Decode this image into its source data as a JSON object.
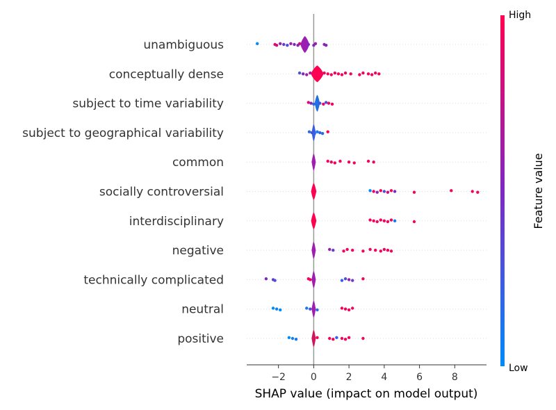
{
  "chart_data": {
    "type": "scatter",
    "subtype": "shap-violin-summary",
    "title": "",
    "xlabel": "SHAP value (impact on model output)",
    "ylabel": "",
    "xlim": [
      -3.8,
      9.8
    ],
    "xticks": [
      -2,
      0,
      2,
      4,
      6,
      8
    ],
    "xtick_labels": [
      "−2",
      "0",
      "2",
      "4",
      "6",
      "8"
    ],
    "grid": false,
    "colorbar": {
      "title": "Feature value",
      "high_label": "High",
      "low_label": "Low",
      "low_color": "#008bfb",
      "mid_color": "#7f28c0",
      "high_color": "#ff0051"
    },
    "features": [
      {
        "name": "unambiguous",
        "violin": {
          "center": -0.5,
          "half_width": 0.25,
          "color": "#9c1fb2"
        },
        "points": [
          {
            "x": -3.2,
            "v": 0.0
          },
          {
            "x": -2.2,
            "v": 0.9
          },
          {
            "x": -2.1,
            "v": 0.8
          },
          {
            "x": -1.9,
            "v": 0.6
          },
          {
            "x": -1.7,
            "v": 0.4
          },
          {
            "x": -1.5,
            "v": 0.3
          },
          {
            "x": -1.3,
            "v": 0.6
          },
          {
            "x": -1.1,
            "v": 0.5
          },
          {
            "x": -0.9,
            "v": 0.5
          },
          {
            "x": -0.8,
            "v": 0.8
          },
          {
            "x": -0.3,
            "v": 0.5
          },
          {
            "x": 0.0,
            "v": 0.5
          },
          {
            "x": 0.1,
            "v": 0.6
          },
          {
            "x": 0.6,
            "v": 0.55
          },
          {
            "x": 0.7,
            "v": 0.5
          }
        ]
      },
      {
        "name": "conceptually dense",
        "violin": {
          "center": 0.2,
          "half_width": 0.35,
          "color": "#ff0051"
        },
        "points": [
          {
            "x": -0.8,
            "v": 0.3
          },
          {
            "x": -0.6,
            "v": 0.5
          },
          {
            "x": -0.4,
            "v": 0.6
          },
          {
            "x": -0.2,
            "v": 0.7
          },
          {
            "x": 0.2,
            "v": 0.95
          },
          {
            "x": 0.4,
            "v": 0.95
          },
          {
            "x": 0.6,
            "v": 0.95
          },
          {
            "x": 0.8,
            "v": 0.95
          },
          {
            "x": 1.0,
            "v": 0.95
          },
          {
            "x": 1.2,
            "v": 0.95
          },
          {
            "x": 1.4,
            "v": 0.95
          },
          {
            "x": 1.6,
            "v": 0.95
          },
          {
            "x": 1.8,
            "v": 0.95
          },
          {
            "x": 2.1,
            "v": 0.95
          },
          {
            "x": 2.6,
            "v": 0.95
          },
          {
            "x": 2.8,
            "v": 0.95
          },
          {
            "x": 3.1,
            "v": 0.95
          },
          {
            "x": 3.3,
            "v": 0.95
          },
          {
            "x": 3.5,
            "v": 0.95
          },
          {
            "x": 3.7,
            "v": 0.95
          }
        ]
      },
      {
        "name": "subject to time variability",
        "violin": {
          "center": 0.2,
          "half_width": 0.15,
          "color": "#1f6fe0"
        },
        "points": [
          {
            "x": -0.3,
            "v": 0.9
          },
          {
            "x": -0.15,
            "v": 0.5
          },
          {
            "x": 0.0,
            "v": 0.2
          },
          {
            "x": 0.15,
            "v": 0.1
          },
          {
            "x": 0.35,
            "v": 0.3
          },
          {
            "x": 0.55,
            "v": 0.9
          },
          {
            "x": 0.7,
            "v": 0.3
          },
          {
            "x": 0.85,
            "v": 0.95
          },
          {
            "x": 1.05,
            "v": 0.95
          }
        ]
      },
      {
        "name": "subject to geographical variability",
        "violin": {
          "center": 0.0,
          "half_width": 0.12,
          "color": "#3a5ce0"
        },
        "points": [
          {
            "x": -0.25,
            "v": 0.15
          },
          {
            "x": -0.1,
            "v": 0.3
          },
          {
            "x": 0.05,
            "v": 0.2
          },
          {
            "x": 0.2,
            "v": 0.1
          },
          {
            "x": 0.35,
            "v": 0.2
          },
          {
            "x": 0.5,
            "v": 0.15
          },
          {
            "x": 0.8,
            "v": 0.95
          }
        ]
      },
      {
        "name": "common",
        "violin": {
          "center": 0.0,
          "half_width": 0.12,
          "color": "#a01db0"
        },
        "points": [
          {
            "x": 0.8,
            "v": 0.95
          },
          {
            "x": 1.0,
            "v": 0.95
          },
          {
            "x": 1.2,
            "v": 0.95
          },
          {
            "x": 1.5,
            "v": 0.95
          },
          {
            "x": 2.0,
            "v": 0.95
          },
          {
            "x": 2.3,
            "v": 0.95
          },
          {
            "x": 3.1,
            "v": 0.95
          },
          {
            "x": 3.4,
            "v": 0.95
          }
        ]
      },
      {
        "name": "socially controversial",
        "violin": {
          "center": 0.0,
          "half_width": 0.15,
          "color": "#ff0051"
        },
        "points": [
          {
            "x": 3.2,
            "v": 0.0
          },
          {
            "x": 3.4,
            "v": 0.95
          },
          {
            "x": 3.6,
            "v": 0.6
          },
          {
            "x": 3.8,
            "v": 0.95
          },
          {
            "x": 4.0,
            "v": 0.3
          },
          {
            "x": 4.2,
            "v": 0.8
          },
          {
            "x": 4.4,
            "v": 0.95
          },
          {
            "x": 4.6,
            "v": 0.5
          },
          {
            "x": 5.7,
            "v": 0.95
          },
          {
            "x": 7.8,
            "v": 0.95
          },
          {
            "x": 9.0,
            "v": 0.95
          },
          {
            "x": 9.3,
            "v": 0.95
          }
        ]
      },
      {
        "name": "interdisciplinary",
        "violin": {
          "center": 0.0,
          "half_width": 0.15,
          "color": "#ff0051"
        },
        "points": [
          {
            "x": 3.2,
            "v": 0.95
          },
          {
            "x": 3.4,
            "v": 0.95
          },
          {
            "x": 3.6,
            "v": 0.95
          },
          {
            "x": 3.8,
            "v": 0.95
          },
          {
            "x": 4.0,
            "v": 0.95
          },
          {
            "x": 4.2,
            "v": 0.95
          },
          {
            "x": 4.4,
            "v": 0.95
          },
          {
            "x": 4.6,
            "v": 0.1
          },
          {
            "x": 5.7,
            "v": 0.95
          }
        ]
      },
      {
        "name": "negative",
        "violin": {
          "center": 0.0,
          "half_width": 0.12,
          "color": "#a01db0"
        },
        "points": [
          {
            "x": 0.9,
            "v": 0.6
          },
          {
            "x": 1.1,
            "v": 0.4
          },
          {
            "x": 1.7,
            "v": 0.95
          },
          {
            "x": 1.9,
            "v": 0.95
          },
          {
            "x": 2.2,
            "v": 0.95
          },
          {
            "x": 2.8,
            "v": 0.95
          },
          {
            "x": 3.2,
            "v": 0.95
          },
          {
            "x": 3.5,
            "v": 0.95
          },
          {
            "x": 3.8,
            "v": 0.95
          },
          {
            "x": 4.0,
            "v": 0.95
          },
          {
            "x": 4.2,
            "v": 0.95
          },
          {
            "x": 4.4,
            "v": 0.95
          }
        ]
      },
      {
        "name": "technically complicated",
        "violin": {
          "center": 0.0,
          "half_width": 0.12,
          "color": "#a01db0"
        },
        "points": [
          {
            "x": -2.7,
            "v": 0.5
          },
          {
            "x": -2.3,
            "v": 0.4
          },
          {
            "x": -2.2,
            "v": 0.3
          },
          {
            "x": -0.3,
            "v": 0.95
          },
          {
            "x": -0.2,
            "v": 0.95
          },
          {
            "x": 1.6,
            "v": 0.2
          },
          {
            "x": 1.8,
            "v": 0.3
          },
          {
            "x": 2.0,
            "v": 0.6
          },
          {
            "x": 2.2,
            "v": 0.4
          },
          {
            "x": 2.8,
            "v": 0.95
          }
        ]
      },
      {
        "name": "neutral",
        "violin": {
          "center": 0.0,
          "half_width": 0.12,
          "color": "#a01db0"
        },
        "points": [
          {
            "x": -2.3,
            "v": 0.0
          },
          {
            "x": -2.1,
            "v": 0.05
          },
          {
            "x": -1.9,
            "v": 0.0
          },
          {
            "x": -0.4,
            "v": 0.1
          },
          {
            "x": -0.2,
            "v": 0.3
          },
          {
            "x": 0.2,
            "v": 0.2
          },
          {
            "x": 1.6,
            "v": 0.95
          },
          {
            "x": 1.8,
            "v": 0.95
          },
          {
            "x": 2.0,
            "v": 0.95
          },
          {
            "x": 2.2,
            "v": 0.95
          }
        ]
      },
      {
        "name": "positive",
        "violin": {
          "center": 0.0,
          "half_width": 0.12,
          "color": "#d0145e"
        },
        "points": [
          {
            "x": -1.4,
            "v": 0.0
          },
          {
            "x": -1.2,
            "v": 0.05
          },
          {
            "x": -1.0,
            "v": 0.1
          },
          {
            "x": 0.2,
            "v": 0.95
          },
          {
            "x": 0.9,
            "v": 0.95
          },
          {
            "x": 1.1,
            "v": 0.95
          },
          {
            "x": 1.3,
            "v": 0.2
          },
          {
            "x": 1.6,
            "v": 0.95
          },
          {
            "x": 1.8,
            "v": 0.95
          },
          {
            "x": 2.0,
            "v": 0.95
          },
          {
            "x": 2.8,
            "v": 0.95
          }
        ]
      }
    ]
  }
}
